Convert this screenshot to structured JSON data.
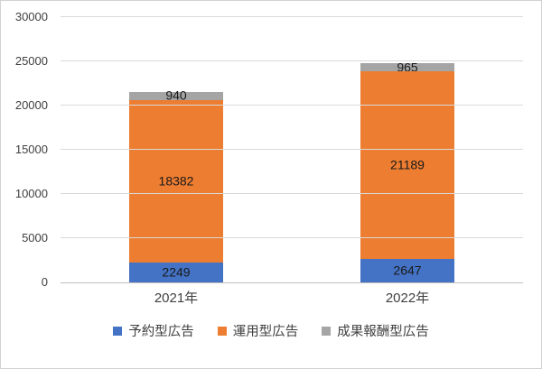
{
  "chart_data": {
    "type": "bar",
    "stacked": true,
    "title": "",
    "xlabel": "",
    "ylabel": "",
    "categories": [
      "2021年",
      "2022年"
    ],
    "series": [
      {
        "name": "予約型広告",
        "color": "#4472C4",
        "values": [
          2249,
          2647
        ]
      },
      {
        "name": "運用型広告",
        "color": "#ED7D31",
        "values": [
          18382,
          21189
        ]
      },
      {
        "name": "成果報酬型広告",
        "color": "#A5A5A5",
        "values": [
          940,
          965
        ]
      }
    ],
    "totals": [
      21571,
      24801
    ],
    "ylim": [
      0,
      30000
    ],
    "ytick_interval": 5000,
    "ytick_labels": [
      "0",
      "5000",
      "10000",
      "15000",
      "20000",
      "25000",
      "30000"
    ],
    "grid": true,
    "gridline_color": "#d9d9d9",
    "axis_line_color": "#bfbfbf",
    "legend_position": "bottom"
  }
}
